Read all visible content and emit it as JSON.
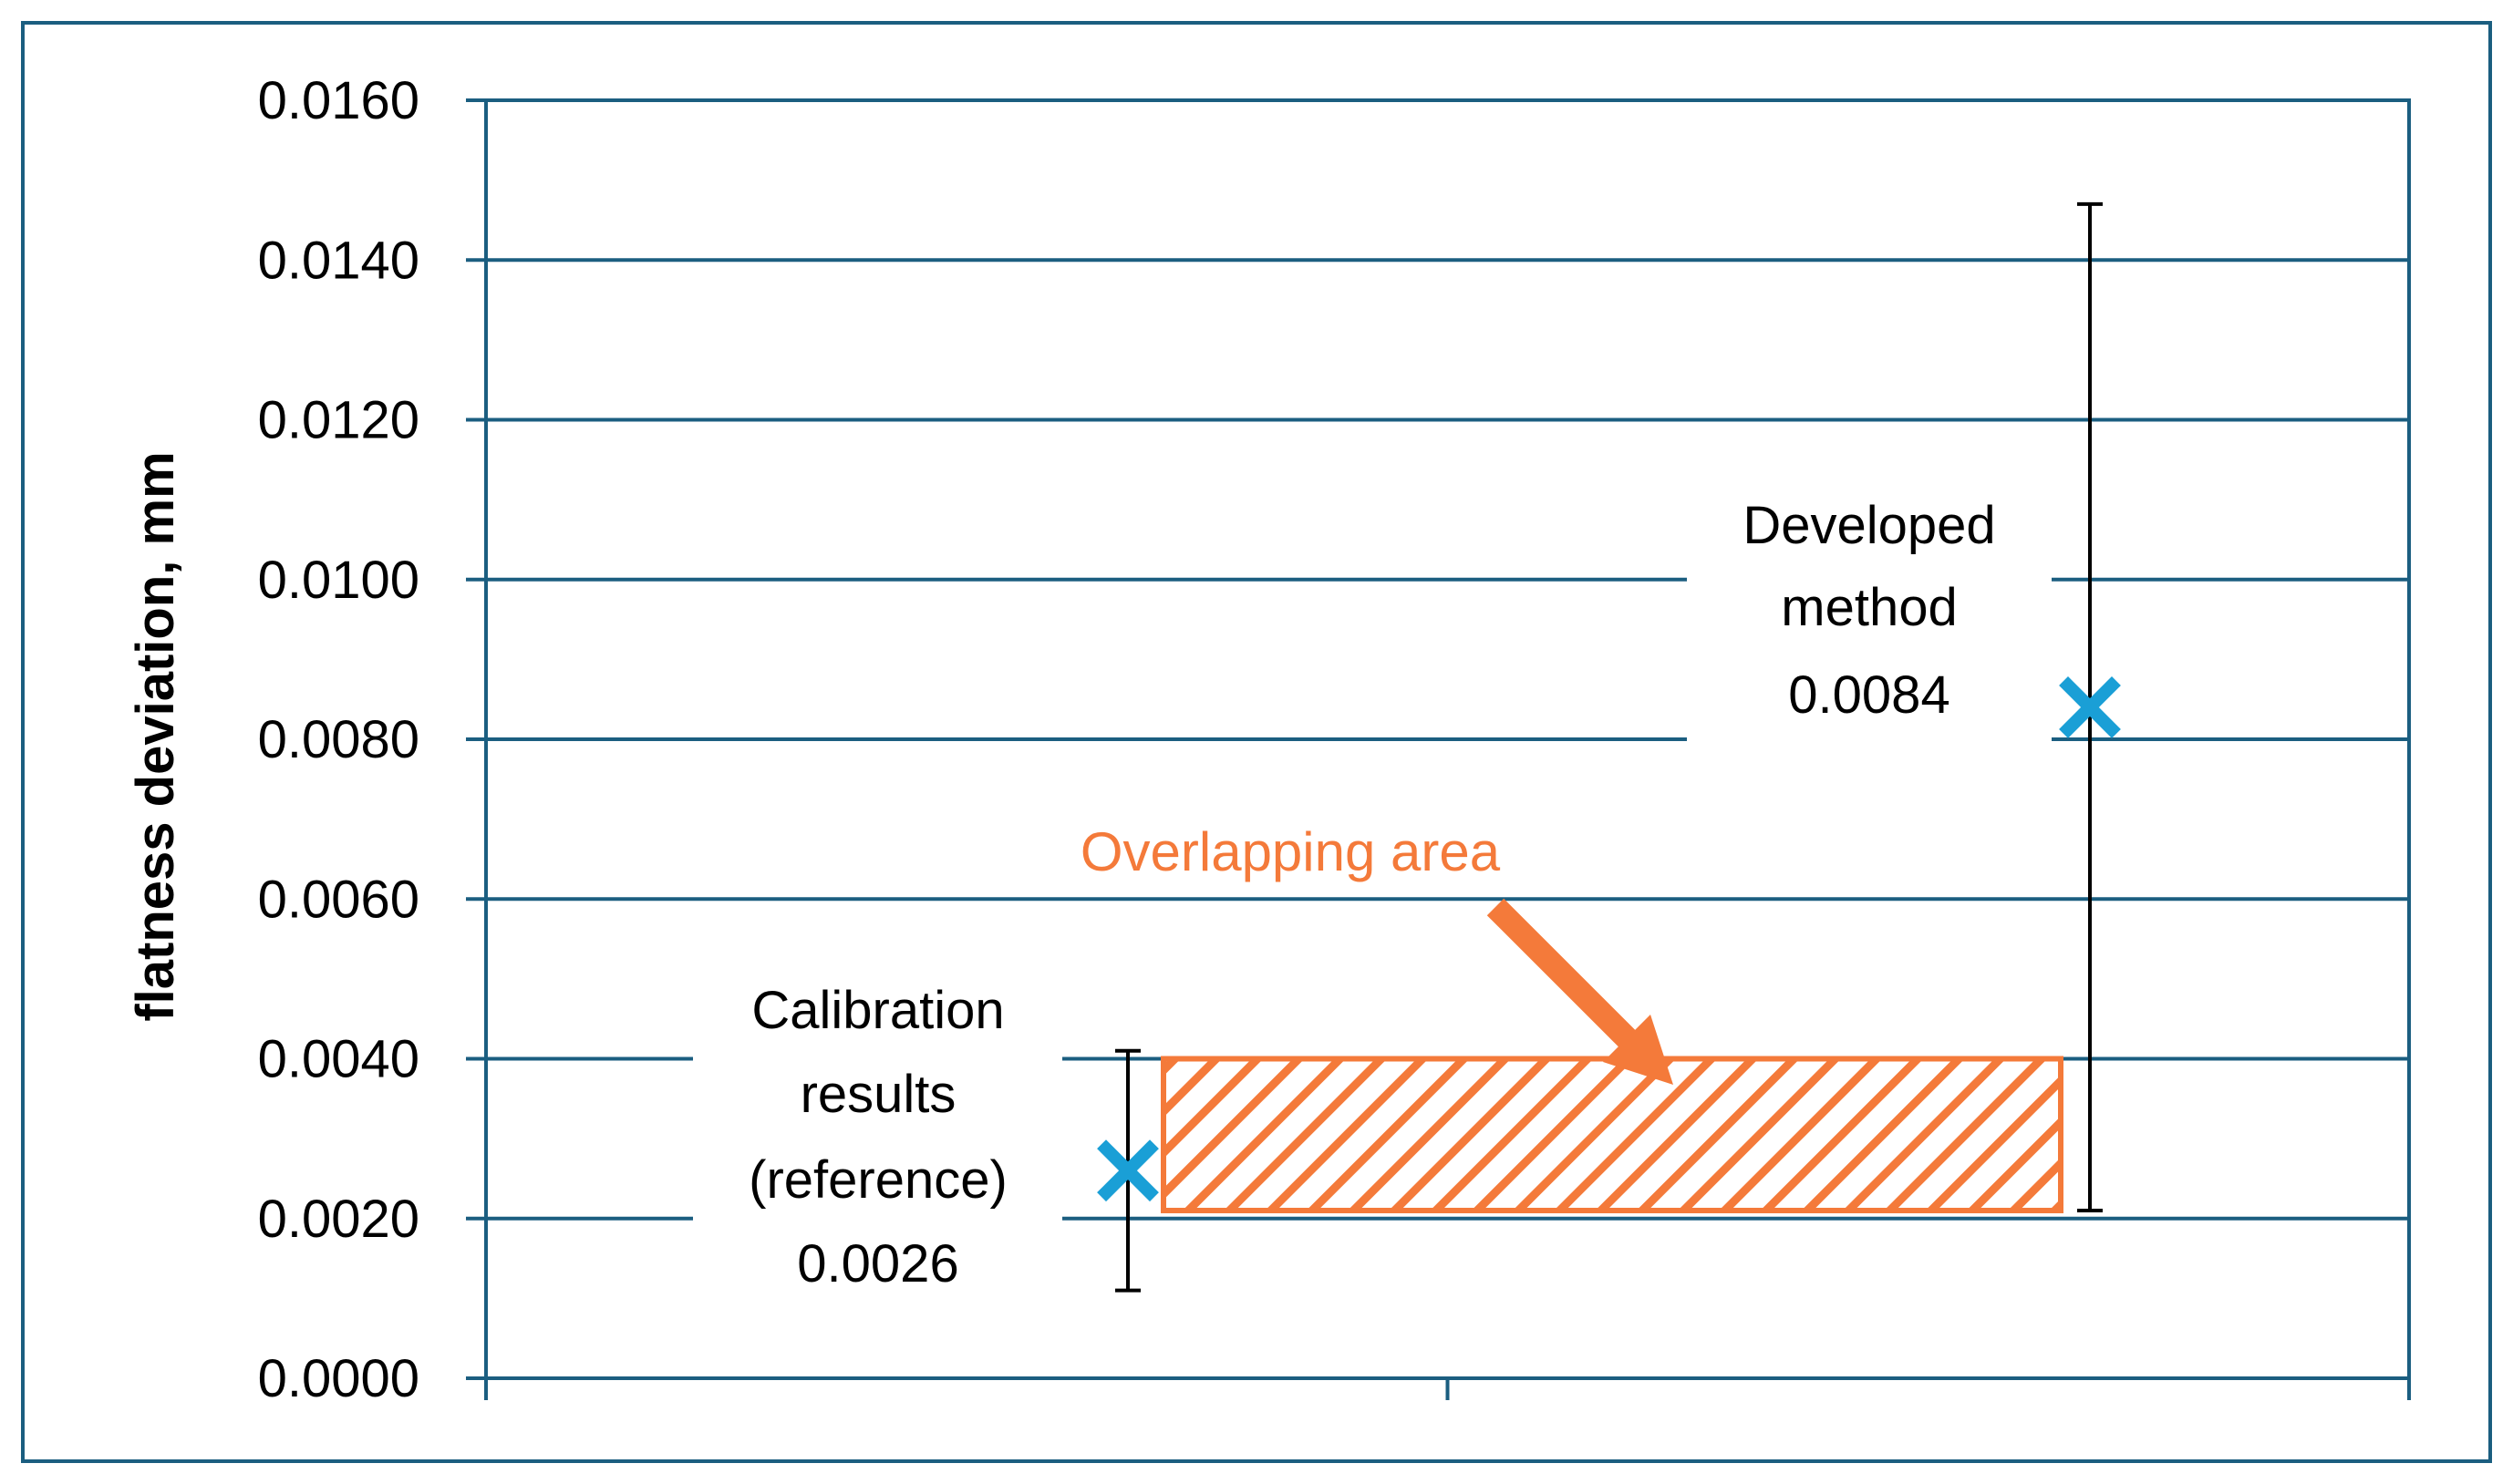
{
  "chart_data": {
    "type": "scatter",
    "title": "",
    "xlabel": "",
    "ylabel": "flatness deviation, mm",
    "ylim": [
      0,
      0.016
    ],
    "yticks": [
      0.0,
      0.002,
      0.004,
      0.006,
      0.008,
      0.01,
      0.012,
      0.014,
      0.016
    ],
    "ytick_labels": [
      "0.0000",
      "0.0020",
      "0.0040",
      "0.0060",
      "0.0080",
      "0.0100",
      "0.0120",
      "0.0140",
      "0.0160"
    ],
    "grid": true,
    "x_categories": 2,
    "series": [
      {
        "name": "Calibration results (reference)",
        "category": 1,
        "value": 0.0026,
        "error_low": 0.0011,
        "error_high": 0.0041,
        "label_lines": [
          "Calibration",
          "results",
          "(reference)",
          "0.0026"
        ]
      },
      {
        "name": "Developed method",
        "category": 2,
        "value": 0.0084,
        "error_low": 0.0021,
        "error_high": 0.0147,
        "label_lines": [
          "Developed",
          "method",
          "0.0084"
        ]
      }
    ],
    "overlap_region": {
      "y_from": 0.0021,
      "y_to": 0.004,
      "label": "Overlapping area"
    },
    "colors": {
      "frame": "#1b5e80",
      "grid": "#1b5e80",
      "marker": "#1a9fd6",
      "overlap": "#f47a3a",
      "errorbar": "#000000",
      "text": "#000000"
    }
  }
}
